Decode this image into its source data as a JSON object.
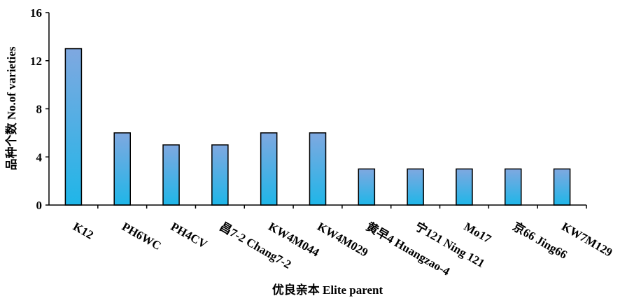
{
  "chart_data": {
    "type": "bar",
    "categories": [
      "K12",
      "PH6WC",
      "PH4CV",
      "昌7-2 Chang7-2",
      "KW4M044",
      "KW4M029",
      "黄早4 Huangzao-4",
      "宁121 Ning 121",
      "Mo17",
      "京66 Jing66",
      "KW7M129"
    ],
    "values": [
      13,
      6,
      5,
      5,
      6,
      6,
      3,
      3,
      3,
      3,
      3
    ],
    "xlabel": "优良亲本 Elite parent",
    "ylabel": "品种个数 No.of varieties",
    "ylim": [
      0,
      16
    ],
    "yticks": [
      0,
      4,
      8,
      12,
      16
    ],
    "grid": false,
    "bar_gradient": [
      "#7FA8E0",
      "#1FB6E8"
    ],
    "bar_stroke": "#000000"
  }
}
